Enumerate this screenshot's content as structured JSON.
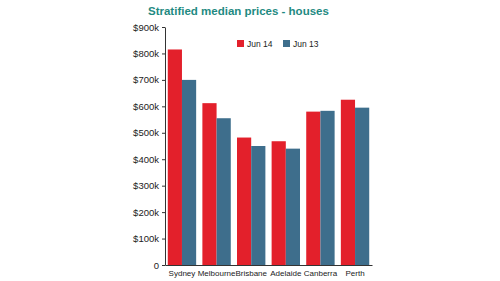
{
  "chart_data": {
    "type": "bar",
    "title": "Stratified median prices - houses",
    "categories": [
      "Sydney",
      "Melbourne",
      "Brisbane",
      "Adelaide",
      "Canberra",
      "Perth"
    ],
    "series": [
      {
        "name": "Jun 14",
        "color": "#e3202b",
        "values": [
          815000,
          612000,
          482000,
          468000,
          580000,
          625000
        ]
      },
      {
        "name": "Jun 13",
        "color": "#3e6e8c",
        "values": [
          700000,
          555000,
          450000,
          440000,
          583000,
          595000
        ]
      }
    ],
    "ylim": [
      0,
      900000
    ],
    "yticks": [
      0,
      {
        "value": 100000,
        "label": "$100k"
      },
      {
        "value": 200000,
        "label": "$200k"
      },
      {
        "value": 300000,
        "label": "$300k"
      },
      {
        "value": 400000,
        "label": "$400k"
      },
      {
        "value": 500000,
        "label": "$500k"
      },
      {
        "value": 600000,
        "label": "$600k"
      },
      {
        "value": 700000,
        "label": "$700k"
      },
      {
        "value": 800000,
        "label": "$800k"
      },
      {
        "value": 900000,
        "label": "$900k"
      }
    ],
    "grid": false,
    "legend": "top"
  }
}
